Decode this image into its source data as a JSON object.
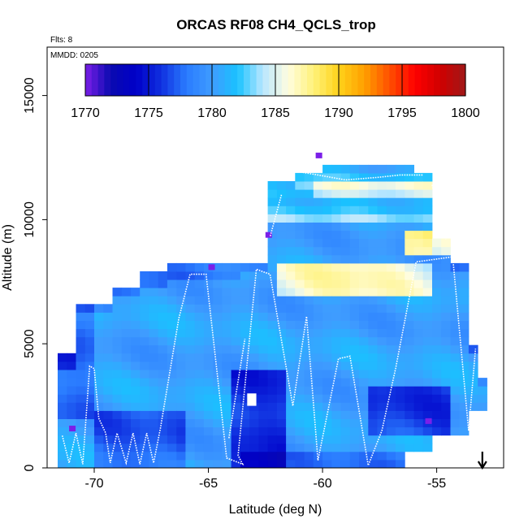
{
  "chart_data": {
    "type": "heatmap",
    "title": "ORCAS RF08 CH4_QCLS_trop",
    "flights_note": "Flts: 8",
    "date_note": "MMDD: 0205",
    "xlabel": "Latitude (deg N)",
    "ylabel": "Altitude (m)",
    "xlim": [
      -72,
      -52
    ],
    "ylim": [
      0,
      16500
    ],
    "xticks": [
      -70,
      -65,
      -60,
      -55
    ],
    "xtick_labels": [
      "-70",
      "-65",
      "-60",
      "-55"
    ],
    "yticks": [
      0,
      5000,
      10000,
      15000
    ],
    "ytick_labels": [
      "0",
      "5000",
      "10000",
      "15000"
    ],
    "colorbar": {
      "min": 1770,
      "max": 1800,
      "ticks": [
        1770,
        1775,
        1780,
        1785,
        1790,
        1795,
        1800
      ],
      "tick_labels": [
        "1770",
        "1775",
        "1780",
        "1785",
        "1790",
        "1795",
        "1800"
      ],
      "colors": [
        "#7b1fe8",
        "#0a0ab0",
        "#0000c8",
        "#1030e0",
        "#2a7cff",
        "#3f9cff",
        "#19c2ff",
        "#b8e6ff",
        "#fffde0",
        "#fff27a",
        "#ffd21a",
        "#ffa000",
        "#ff5000",
        "#ff0000",
        "#d00000",
        "#a01818"
      ]
    },
    "arrow_marker_lat": -53,
    "colors": {
      "flight_track": "#ffffff",
      "axis": "#000000"
    }
  }
}
